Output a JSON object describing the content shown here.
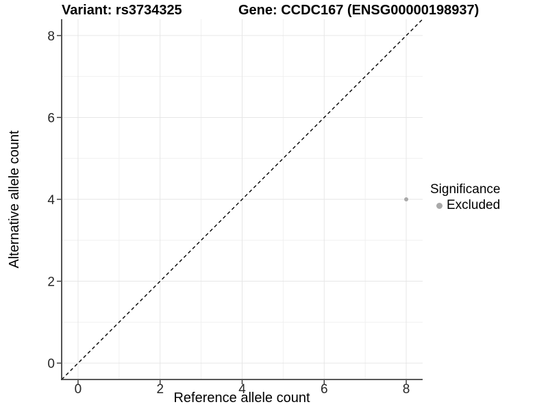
{
  "chart_data": {
    "type": "scatter",
    "variant_title": "Variant: rs3734325",
    "gene_title": "Gene: CCDC167 (ENSG00000198937)",
    "xlabel": "Reference allele count",
    "ylabel": "Alternative allele count",
    "xlim": [
      -0.4,
      8.4
    ],
    "ylim": [
      -0.4,
      8.4
    ],
    "xticks": [
      0,
      2,
      4,
      6,
      8
    ],
    "yticks": [
      0,
      2,
      4,
      6,
      8
    ],
    "minor_grid_x": [
      1,
      3,
      5,
      7
    ],
    "minor_grid_y": [
      1,
      3,
      5,
      7
    ],
    "grid": true,
    "points": [
      {
        "x": 8,
        "y": 4,
        "significance": "Excluded"
      }
    ],
    "point_color": "#a9a9a9",
    "point_radius": 3,
    "diagonal": {
      "slope": 1,
      "intercept": 0,
      "style": "dashed",
      "color": "#000000"
    },
    "legend": {
      "title": "Significance",
      "position": "right",
      "items": [
        {
          "label": "Excluded",
          "color": "#a9a9a9"
        }
      ]
    },
    "colors": {
      "grid_major": "#e6e6e6",
      "grid_minor": "#f0f0f0",
      "axis_line": "#404040",
      "tick_mark": "#333333",
      "tick_text": "#262626"
    }
  }
}
